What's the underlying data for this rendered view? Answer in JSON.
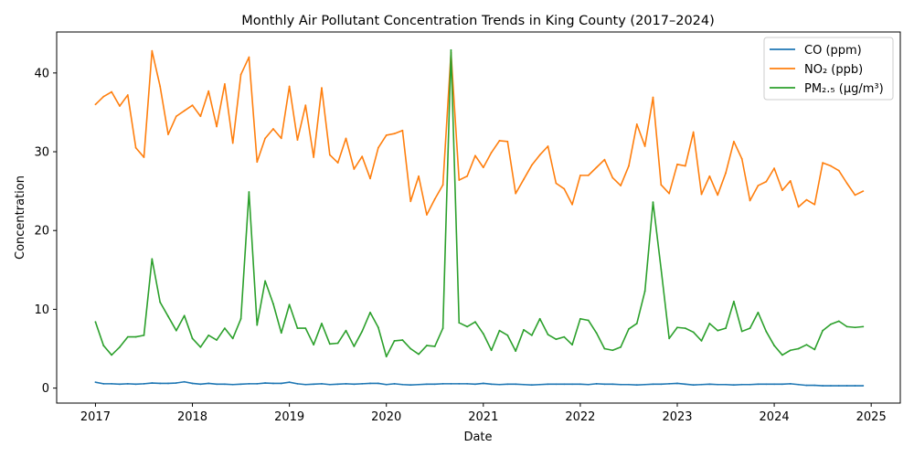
{
  "chart_data": {
    "type": "line",
    "title": "Monthly Air Pollutant Concentration Trends in King County (2017–2024)",
    "xlabel": "Date",
    "ylabel": "Concentration",
    "xlim": [
      2016.6,
      2025.3
    ],
    "ylim": [
      -1.9,
      45.2
    ],
    "xticks": [
      2017,
      2018,
      2019,
      2020,
      2021,
      2022,
      2023,
      2024,
      2025
    ],
    "xtick_labels": [
      "2017",
      "2018",
      "2019",
      "2020",
      "2021",
      "2022",
      "2023",
      "2024",
      "2025"
    ],
    "yticks": [
      0,
      10,
      20,
      30,
      40
    ],
    "ytick_labels": [
      "0",
      "10",
      "20",
      "30",
      "40"
    ],
    "grid": false,
    "legend_position": "top-right",
    "x_start": {
      "year": 2017,
      "month": 1
    },
    "series": [
      {
        "name": "CO (ppm)",
        "color": "#1f77b4",
        "values": [
          0.75,
          0.55,
          0.55,
          0.5,
          0.55,
          0.5,
          0.55,
          0.65,
          0.6,
          0.6,
          0.65,
          0.8,
          0.6,
          0.5,
          0.6,
          0.5,
          0.5,
          0.45,
          0.5,
          0.55,
          0.55,
          0.65,
          0.6,
          0.6,
          0.75,
          0.55,
          0.45,
          0.5,
          0.55,
          0.45,
          0.5,
          0.55,
          0.5,
          0.55,
          0.6,
          0.6,
          0.45,
          0.55,
          0.45,
          0.4,
          0.45,
          0.5,
          0.5,
          0.55,
          0.55,
          0.55,
          0.55,
          0.5,
          0.6,
          0.5,
          0.45,
          0.5,
          0.5,
          0.45,
          0.4,
          0.45,
          0.5,
          0.5,
          0.5,
          0.5,
          0.5,
          0.45,
          0.55,
          0.5,
          0.5,
          0.45,
          0.45,
          0.4,
          0.45,
          0.5,
          0.5,
          0.55,
          0.6,
          0.5,
          0.4,
          0.45,
          0.5,
          0.45,
          0.45,
          0.4,
          0.45,
          0.45,
          0.5,
          0.5,
          0.5,
          0.5,
          0.55,
          0.45,
          0.35,
          0.35,
          0.3,
          0.3,
          0.3,
          0.3,
          0.3,
          0.3
        ]
      },
      {
        "name": "NO₂ (ppb)",
        "color": "#ff7f0e",
        "values": [
          36.0,
          37.0,
          37.6,
          35.8,
          37.2,
          30.5,
          29.3,
          42.8,
          38.3,
          32.2,
          34.5,
          35.2,
          35.9,
          34.5,
          37.7,
          33.2,
          38.6,
          31.1,
          39.8,
          42.0,
          28.7,
          31.7,
          32.9,
          31.7,
          38.3,
          31.5,
          35.9,
          29.3,
          38.1,
          29.6,
          28.6,
          31.7,
          27.8,
          29.4,
          26.6,
          30.5,
          32.1,
          32.3,
          32.7,
          23.7,
          26.9,
          22.0,
          24.0,
          25.8,
          42.6,
          26.4,
          26.9,
          29.5,
          28.0,
          29.9,
          31.4,
          31.3,
          24.7,
          26.5,
          28.3,
          29.6,
          30.7,
          26.0,
          25.3,
          23.3,
          27.0,
          27.0,
          28.0,
          29.0,
          26.7,
          25.7,
          28.2,
          33.5,
          30.7,
          36.9,
          25.8,
          24.7,
          28.4,
          28.2,
          32.5,
          24.6,
          26.9,
          24.5,
          27.3,
          31.3,
          29.1,
          23.8,
          25.7,
          26.2,
          27.9,
          25.1,
          26.3,
          23.0,
          23.9,
          23.3,
          28.6,
          28.2,
          27.6,
          26.0,
          24.5,
          25.0
        ]
      },
      {
        "name": "PM₂.₅ (µg/m³)",
        "color": "#2ca02c",
        "values": [
          8.4,
          5.4,
          4.2,
          5.2,
          6.5,
          6.5,
          6.7,
          16.4,
          10.9,
          9.1,
          7.3,
          9.2,
          6.3,
          5.2,
          6.7,
          6.1,
          7.6,
          6.3,
          8.8,
          24.9,
          8.0,
          13.6,
          10.7,
          7.0,
          10.6,
          7.6,
          7.6,
          5.5,
          8.2,
          5.6,
          5.7,
          7.3,
          5.3,
          7.2,
          9.6,
          7.7,
          4.0,
          6.0,
          6.1,
          5.0,
          4.3,
          5.4,
          5.3,
          7.6,
          42.9,
          8.3,
          7.8,
          8.4,
          6.9,
          4.8,
          7.3,
          6.7,
          4.7,
          7.4,
          6.7,
          8.8,
          6.8,
          6.2,
          6.5,
          5.5,
          8.8,
          8.6,
          7.0,
          5.0,
          4.8,
          5.2,
          7.5,
          8.2,
          12.3,
          23.6,
          15.1,
          6.3,
          7.7,
          7.6,
          7.1,
          6.0,
          8.2,
          7.3,
          7.6,
          11.0,
          7.2,
          7.6,
          9.6,
          7.2,
          5.4,
          4.2,
          4.8,
          5.0,
          5.5,
          4.9,
          7.3,
          8.1,
          8.5,
          7.8,
          7.7,
          7.8
        ]
      }
    ]
  }
}
